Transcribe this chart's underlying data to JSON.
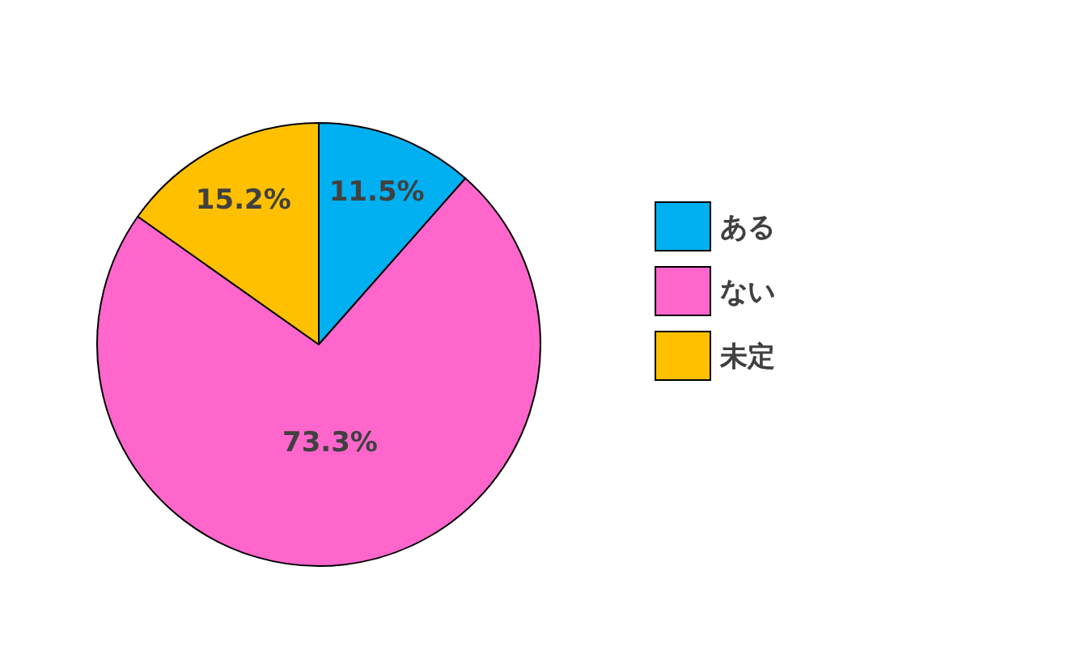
{
  "chart_data": {
    "type": "pie",
    "categories": [
      "ある",
      "ない",
      "未定"
    ],
    "values": [
      11.5,
      73.3,
      15.2
    ],
    "colors": [
      "#00b0f0",
      "#ff66cc",
      "#ffc000"
    ],
    "value_labels": [
      "11.5%",
      "73.3%",
      "15.2%"
    ],
    "legend": "right"
  }
}
